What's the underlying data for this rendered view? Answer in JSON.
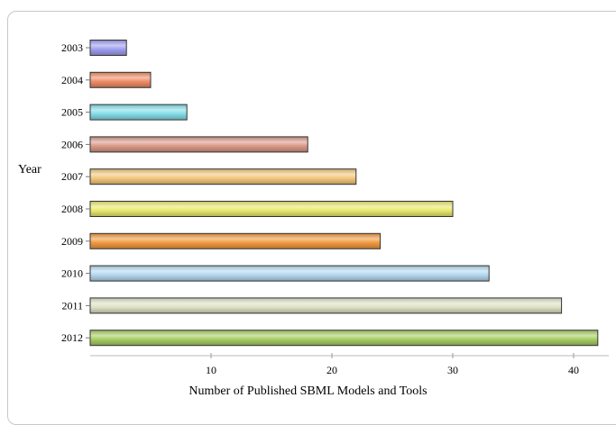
{
  "chart_data": {
    "type": "bar",
    "orientation": "horizontal",
    "ylabel": "Year",
    "xlabel": "Number of Published SBML Models and Tools",
    "categories": [
      "2003",
      "2004",
      "2005",
      "2006",
      "2007",
      "2008",
      "2009",
      "2010",
      "2011",
      "2012"
    ],
    "values": [
      3,
      5,
      8,
      18,
      22,
      30,
      24,
      33,
      39,
      42
    ],
    "colors": [
      "#9f9ff0",
      "#ee8c66",
      "#84dde8",
      "#d99a88",
      "#f3c87d",
      "#e9e96e",
      "#f19a3f",
      "#b4d8ee",
      "#dfe2c5",
      "#a8cd62"
    ],
    "xlim": [
      0,
      43
    ],
    "xticks": [
      10,
      20,
      30,
      40
    ],
    "grid": false,
    "legend": "none"
  }
}
